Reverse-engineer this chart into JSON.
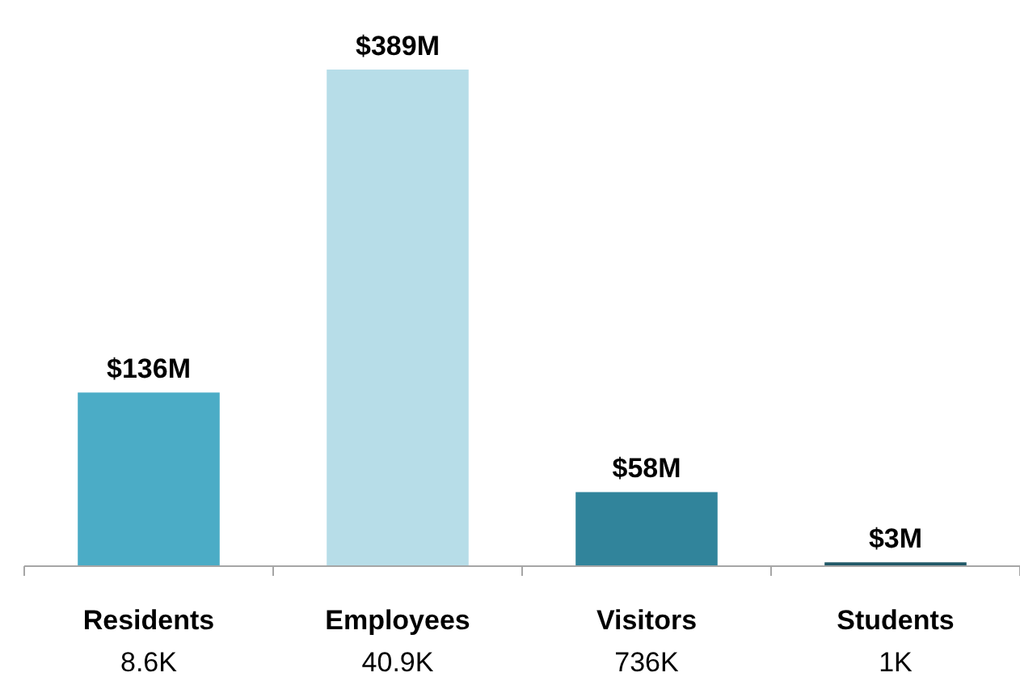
{
  "chart_data": {
    "type": "bar",
    "categories": [
      "Residents\n8.6K",
      "Employees\n40.9K",
      "Visitors\n736K",
      "Students\n1K"
    ],
    "values": [
      136,
      389,
      58,
      3
    ],
    "colors": [
      "#4bacc6",
      "#b7dde8",
      "#31849b",
      "#215968"
    ],
    "value_labels": [
      "$136M",
      "$389M",
      "$58M",
      "$3M"
    ]
  }
}
